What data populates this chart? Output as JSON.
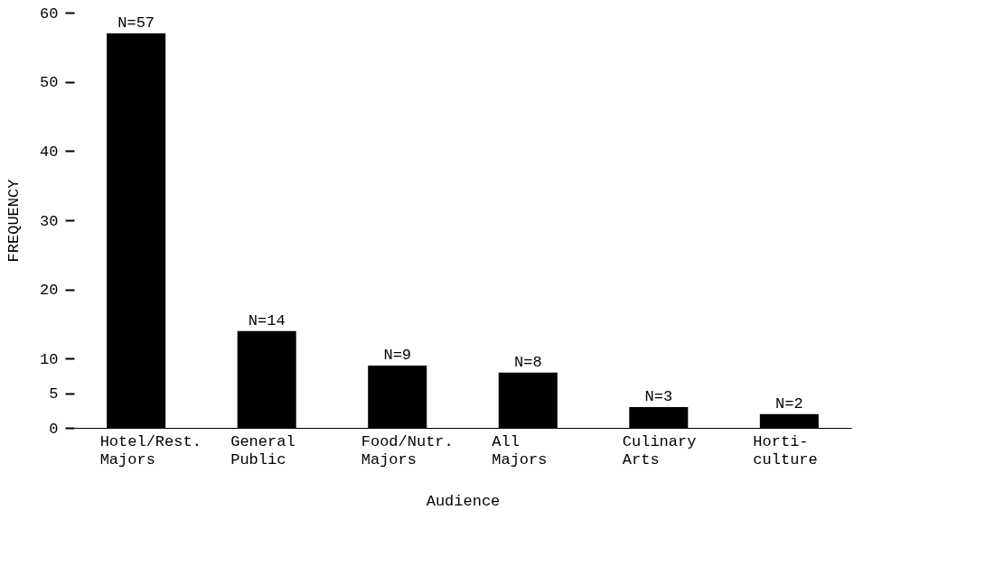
{
  "chart_data": {
    "type": "bar",
    "categories": [
      "Hotel/Rest.\nMajors",
      "General\nPublic",
      "Food/Nutr.\nMajors",
      "All\nMajors",
      "Culinary\nArts",
      "Horti-\nculture"
    ],
    "values": [
      57,
      14,
      9,
      8,
      3,
      2
    ],
    "color": "#000000",
    "data_labels": true,
    "value_labels": [
      "N=57",
      "N=14",
      "N=9",
      "N=8",
      "N=3",
      "N=2"
    ],
    "xlabel": "Audience",
    "ylabel": "FREQUENCY",
    "ylim": [
      0,
      60
    ],
    "yticks": [
      0,
      5,
      10,
      20,
      30,
      40,
      50,
      60
    ],
    "grid": false
  }
}
